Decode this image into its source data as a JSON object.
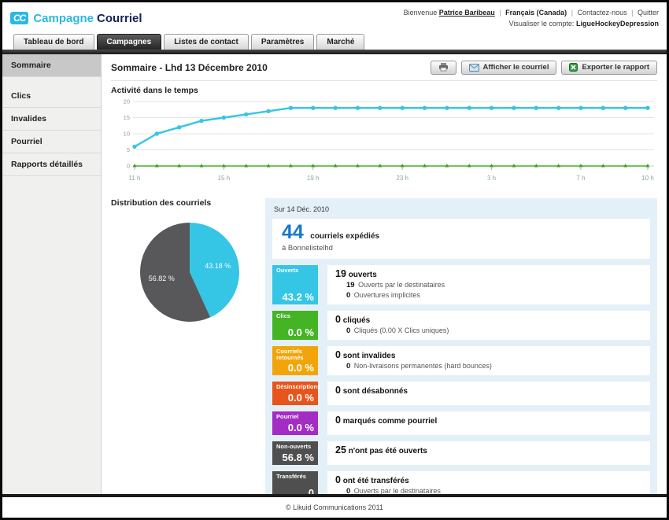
{
  "header": {
    "logo_text": "CC",
    "brand_primary": "Campagne",
    "brand_secondary": "Courriel",
    "welcome_prefix": "Bienvenue",
    "user_name": "Patrice Baribeau",
    "language": "Français (Canada)",
    "contact_link": "Contactez-nous",
    "quit_link": "Quitter",
    "separator": "|",
    "account_prefix": "Visualiser le compte:",
    "account_name": "LigueHockeyDepression"
  },
  "tabs": [
    {
      "label": "Tableau de bord",
      "active": false
    },
    {
      "label": "Campagnes",
      "active": true
    },
    {
      "label": "Listes de contact",
      "active": false
    },
    {
      "label": "Paramètres",
      "active": false
    },
    {
      "label": "Marché",
      "active": false
    }
  ],
  "sidebar": {
    "items": [
      {
        "label": "Sommaire",
        "active": true
      },
      {
        "label": "Clics",
        "active": false
      },
      {
        "label": "Invalides",
        "active": false
      },
      {
        "label": "Pourriel",
        "active": false
      },
      {
        "label": "Rapports détaillés",
        "active": false
      }
    ]
  },
  "main": {
    "page_title": "Sommaire - Lhd 13 Décembre 2010",
    "buttons": {
      "print_icon": "printer-icon",
      "show_email_label": "Afficher le courriel",
      "export_label": "Exporter le rapport"
    },
    "activity_title": "Activité dans le temps",
    "distribution_title": "Distribution des courriels"
  },
  "chart_data": [
    {
      "type": "line",
      "title": "Activité dans le temps",
      "x_tick_labels": [
        "11 h",
        "15 h",
        "19 h",
        "23 h",
        "3 h",
        "7 h",
        "10 h"
      ],
      "x_tick_indices": [
        0,
        4,
        8,
        12,
        16,
        20,
        23
      ],
      "n_points": 24,
      "ylim": [
        0,
        20
      ],
      "yticks": [
        0,
        5,
        10,
        15,
        20
      ],
      "grid": true,
      "legend": "none",
      "series": [
        {
          "name": "Ouvertures",
          "color": "#35c5e5",
          "marker": "circle",
          "values": [
            6,
            10,
            12,
            14,
            15,
            16,
            17,
            18,
            18,
            18,
            18,
            18,
            18,
            18,
            18,
            18,
            18,
            18,
            18,
            18,
            18,
            18,
            18,
            18
          ]
        },
        {
          "name": "Clics",
          "color": "#4cae28",
          "marker": "triangle",
          "values": [
            0,
            0,
            0,
            0,
            0,
            0,
            0,
            0,
            0,
            0,
            0,
            0,
            0,
            0,
            0,
            0,
            0,
            0,
            0,
            0,
            0,
            0,
            0,
            0
          ]
        }
      ]
    },
    {
      "type": "pie",
      "title": "Distribution des courriels",
      "start_angle_deg": -90,
      "direction": "clockwise",
      "slices": [
        {
          "label": "43.18 %",
          "value": 43.18,
          "color": "#35c5e5"
        },
        {
          "label": "56.82 %",
          "value": 56.82,
          "color": "#58585a"
        }
      ]
    }
  ],
  "summary_panel": {
    "date_header": "Sur 14 Déc. 2010",
    "sent_count": "44",
    "sent_label": "courriels expédiés",
    "sent_sublabel": "à Bonnelistelhd",
    "rows": [
      {
        "badge_label": "Ouverts",
        "badge_value": "43.2 %",
        "badge_color": "#35c5e5",
        "main_num": "19",
        "main_text": "ouverts",
        "subs": [
          {
            "num": "19",
            "text": "Ouverts par le destinataires"
          },
          {
            "num": "0",
            "text": "Ouvertures implicites"
          }
        ]
      },
      {
        "badge_label": "Clics",
        "badge_value": "0.0 %",
        "badge_color": "#44b425",
        "main_num": "0",
        "main_text": "cliqués",
        "subs": [
          {
            "num": "0",
            "text": "Cliqués (0.00 X Clics uniques)"
          }
        ]
      },
      {
        "badge_label": "Courriels retournés",
        "badge_value": "0.0 %",
        "badge_color": "#f2a50b",
        "main_num": "0",
        "main_text": "sont invalides",
        "subs": [
          {
            "num": "0",
            "text": "Non-livraisons permanentes (hard bounces)"
          }
        ]
      },
      {
        "badge_label": "Désinscriptions",
        "badge_value": "0.0 %",
        "badge_color": "#e8551c",
        "main_num": "0",
        "main_text": "sont désabonnés",
        "subs": []
      },
      {
        "badge_label": "Pourriel",
        "badge_value": "0.0 %",
        "badge_color": "#a32cc4",
        "main_num": "0",
        "main_text": "marqués comme pourriel",
        "subs": []
      },
      {
        "badge_label": "Non-ouverts",
        "badge_value": "56.8 %",
        "badge_color": "#4f4f4f",
        "main_num": "25",
        "main_text": "n'ont pas été ouverts",
        "subs": []
      },
      {
        "badge_label": "Transférés",
        "badge_value": "0",
        "badge_color": "#4f4f4f",
        "main_num": "0",
        "main_text": "ont été transférés",
        "subs": [
          {
            "num": "0",
            "text": "Ouverts par le destinataires"
          }
        ]
      }
    ]
  },
  "footer": {
    "copyright": "© Likuid Communications 2011"
  },
  "colors": {
    "accent_cyan": "#29b8e5",
    "brand_navy": "#13235b",
    "big_number_blue": "#1877cf",
    "panel_bg": "#e4f0f8",
    "green_line": "#4cae28"
  }
}
